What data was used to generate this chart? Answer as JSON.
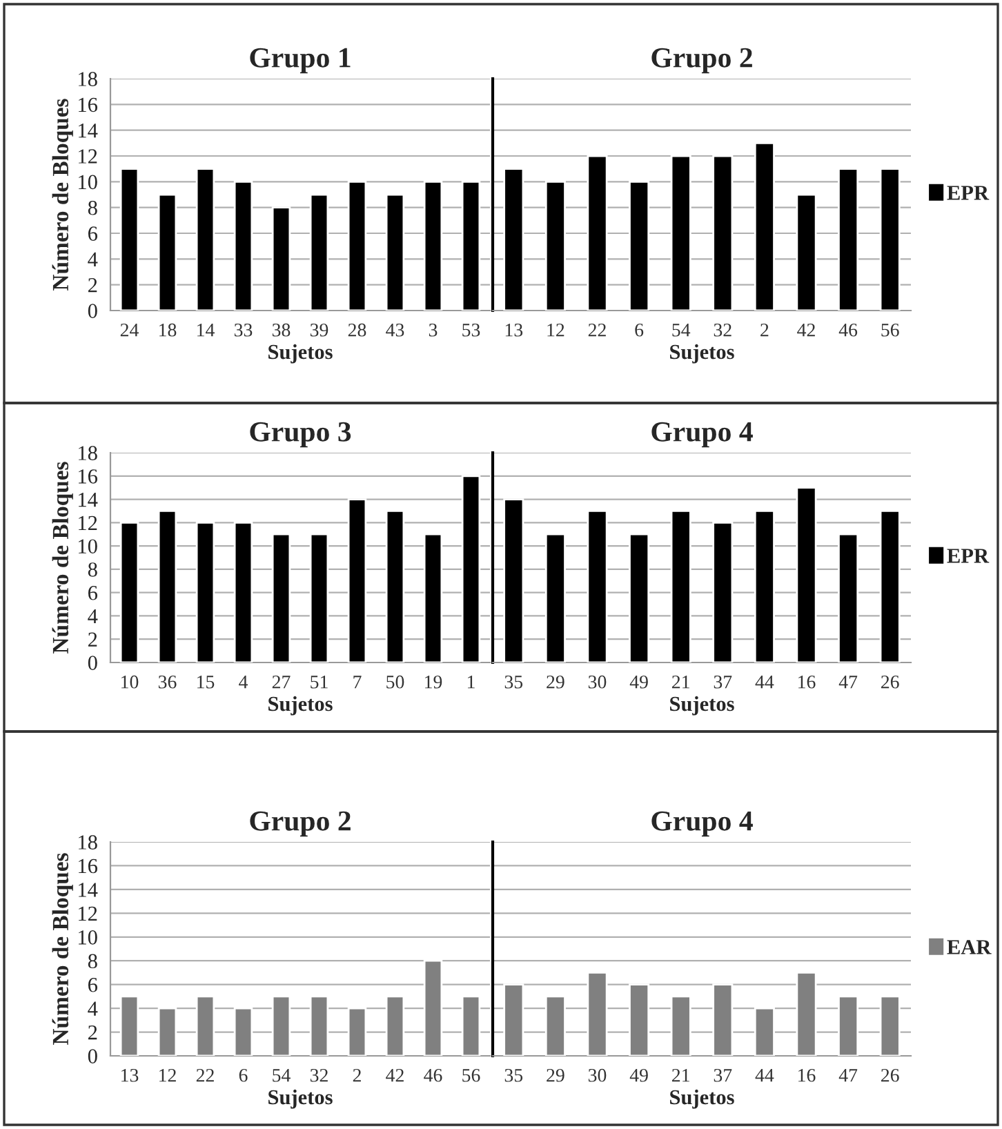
{
  "chart_data": [
    {
      "type": "bar",
      "title": "Grupo 1",
      "xlabel": "Sujetos",
      "ylabel": "Número de Bloques",
      "categories": [
        "24",
        "18",
        "14",
        "33",
        "38",
        "39",
        "28",
        "43",
        "3",
        "53"
      ],
      "series": [
        {
          "color": "#000000",
          "values": [
            11,
            9,
            11,
            10,
            8,
            9,
            10,
            9,
            10,
            10
          ]
        }
      ],
      "ylim": [
        0,
        18
      ],
      "yticks": [
        0,
        2,
        4,
        6,
        8,
        10,
        12,
        14,
        16,
        18
      ],
      "grid": "y"
    },
    {
      "type": "bar",
      "title": "Grupo 2",
      "xlabel": "Sujetos",
      "categories": [
        "13",
        "12",
        "22",
        "6",
        "54",
        "32",
        "2",
        "42",
        "46",
        "56"
      ],
      "series": [
        {
          "name": "EPR",
          "color": "#000000",
          "values": [
            11,
            10,
            12,
            10,
            12,
            12,
            13,
            9,
            11,
            11
          ]
        }
      ],
      "ylim": [
        0,
        18
      ],
      "yticks": [
        0,
        2,
        4,
        6,
        8,
        10,
        12,
        14,
        16,
        18
      ],
      "grid": "y",
      "tick_labels": "x",
      "legend": "right"
    },
    {
      "type": "bar",
      "title": "Grupo 3",
      "xlabel": "Sujetos",
      "ylabel": "Número de Bloques",
      "categories": [
        "10",
        "36",
        "15",
        "4",
        "27",
        "51",
        "7",
        "50",
        "19",
        "1"
      ],
      "series": [
        {
          "color": "#000000",
          "values": [
            12,
            13,
            12,
            12,
            11,
            11,
            14,
            13,
            11,
            16
          ]
        }
      ],
      "ylim": [
        0,
        18
      ],
      "yticks": [
        0,
        2,
        4,
        6,
        8,
        10,
        12,
        14,
        16,
        18
      ],
      "grid": "y"
    },
    {
      "type": "bar",
      "title": "Grupo 4",
      "xlabel": "Sujetos",
      "categories": [
        "35",
        "29",
        "30",
        "49",
        "21",
        "37",
        "44",
        "16",
        "47",
        "26"
      ],
      "series": [
        {
          "name": "EPR",
          "color": "#000000",
          "values": [
            14,
            11,
            13,
            11,
            13,
            12,
            13,
            15,
            11,
            13
          ]
        }
      ],
      "ylim": [
        0,
        18
      ],
      "yticks": [
        0,
        2,
        4,
        6,
        8,
        10,
        12,
        14,
        16,
        18
      ],
      "grid": "y",
      "tick_labels": "x",
      "legend": "right"
    },
    {
      "type": "bar",
      "title": "Grupo 2",
      "xlabel": "Sujetos",
      "ylabel": "Número de Bloques",
      "categories": [
        "13",
        "12",
        "22",
        "6",
        "54",
        "32",
        "2",
        "42",
        "46",
        "56"
      ],
      "series": [
        {
          "color": "#808080",
          "values": [
            5,
            4,
            5,
            4,
            5,
            5,
            4,
            5,
            8,
            5
          ]
        }
      ],
      "ylim": [
        0,
        18
      ],
      "yticks": [
        0,
        2,
        4,
        6,
        8,
        10,
        12,
        14,
        16,
        18
      ],
      "grid": "y"
    },
    {
      "type": "bar",
      "title": "Grupo 4",
      "xlabel": "Sujetos",
      "categories": [
        "35",
        "29",
        "30",
        "49",
        "21",
        "37",
        "44",
        "16",
        "47",
        "26"
      ],
      "series": [
        {
          "name": "EAR",
          "color": "#808080",
          "values": [
            6,
            5,
            7,
            6,
            5,
            6,
            4,
            7,
            5,
            5
          ]
        }
      ],
      "ylim": [
        0,
        18
      ],
      "yticks": [
        0,
        2,
        4,
        6,
        8,
        10,
        12,
        14,
        16,
        18
      ],
      "grid": "y",
      "tick_labels": "x",
      "legend": "right"
    }
  ]
}
